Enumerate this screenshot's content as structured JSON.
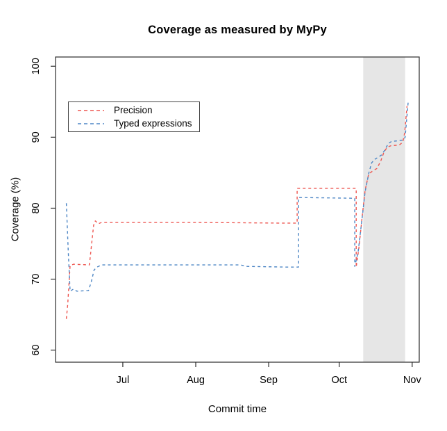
{
  "chart_data": {
    "type": "line",
    "title": "Coverage as measured by MyPy",
    "xlabel": "Commit time",
    "ylabel": "Coverage (%)",
    "line_style": "dashed",
    "grid": false,
    "axis_color": "#2b2b2b",
    "x_unit": "days since Jun 1",
    "x_range_days": [
      1.4,
      156
    ],
    "y_range": [
      58.3,
      101.3
    ],
    "y_ticks": [
      60,
      70,
      80,
      90,
      100
    ],
    "x_ticks": [
      {
        "label": "Jul",
        "day": 30
      },
      {
        "label": "Aug",
        "day": 61
      },
      {
        "label": "Sep",
        "day": 92
      },
      {
        "label": "Oct",
        "day": 122
      },
      {
        "label": "Nov",
        "day": 153
      }
    ],
    "shaded_region": {
      "from_day": 132.2,
      "to_day": 150.0,
      "color": "#e6e6e6",
      "description": "highlighted period mid-to-late October"
    },
    "legend": {
      "position": "top-left",
      "items": [
        {
          "label": "Precision",
          "color": "#ee5650"
        },
        {
          "label": "Typed expressions",
          "color": "#4d86c5"
        }
      ]
    },
    "series": [
      {
        "name": "Precision",
        "color": "#ee5650",
        "dash": "4 4",
        "points": [
          [
            6.0,
            64.4
          ],
          [
            6.6,
            66.5
          ],
          [
            7.6,
            71.9
          ],
          [
            9.0,
            72.1
          ],
          [
            15.8,
            72.0
          ],
          [
            17.6,
            77.6
          ],
          [
            18.3,
            78.2
          ],
          [
            19.6,
            77.8
          ],
          [
            21.0,
            78.0
          ],
          [
            60.0,
            78.0
          ],
          [
            96.0,
            77.9
          ],
          [
            104.1,
            77.9
          ],
          [
            104.1,
            82.8
          ],
          [
            129.2,
            82.8
          ],
          [
            129.2,
            71.7
          ],
          [
            130.4,
            74.5
          ],
          [
            131.8,
            79.0
          ],
          [
            133.0,
            82.5
          ],
          [
            134.5,
            84.8
          ],
          [
            136.0,
            85.2
          ],
          [
            138.0,
            85.6
          ],
          [
            139.6,
            86.6
          ],
          [
            141.0,
            87.9
          ],
          [
            142.4,
            88.6
          ],
          [
            144.0,
            88.8
          ],
          [
            147.5,
            88.9
          ],
          [
            149.0,
            89.3
          ],
          [
            149.8,
            90.6
          ],
          [
            150.8,
            94.4
          ]
        ]
      },
      {
        "name": "Typed expressions",
        "color": "#4d86c5",
        "dash": "4 4",
        "points": [
          [
            6.0,
            80.7
          ],
          [
            6.8,
            74.0
          ],
          [
            7.6,
            68.3
          ],
          [
            9.0,
            68.6
          ],
          [
            10.5,
            68.3
          ],
          [
            15.4,
            68.4
          ],
          [
            16.6,
            69.6
          ],
          [
            17.8,
            71.3
          ],
          [
            19.0,
            71.7
          ],
          [
            21.0,
            72.0
          ],
          [
            80.0,
            72.0
          ],
          [
            82.5,
            71.8
          ],
          [
            100.0,
            71.7
          ],
          [
            104.7,
            71.7
          ],
          [
            104.7,
            81.5
          ],
          [
            128.6,
            81.4
          ],
          [
            128.6,
            71.8
          ],
          [
            130.0,
            73.8
          ],
          [
            131.5,
            78.0
          ],
          [
            133.0,
            82.3
          ],
          [
            134.6,
            85.0
          ],
          [
            135.8,
            86.4
          ],
          [
            137.2,
            86.9
          ],
          [
            138.6,
            87.2
          ],
          [
            140.0,
            87.5
          ],
          [
            141.4,
            88.2
          ],
          [
            142.8,
            89.1
          ],
          [
            144.2,
            89.4
          ],
          [
            147.0,
            89.5
          ],
          [
            149.2,
            89.6
          ],
          [
            150.0,
            90.0
          ],
          [
            151.3,
            95.0
          ]
        ]
      }
    ]
  }
}
